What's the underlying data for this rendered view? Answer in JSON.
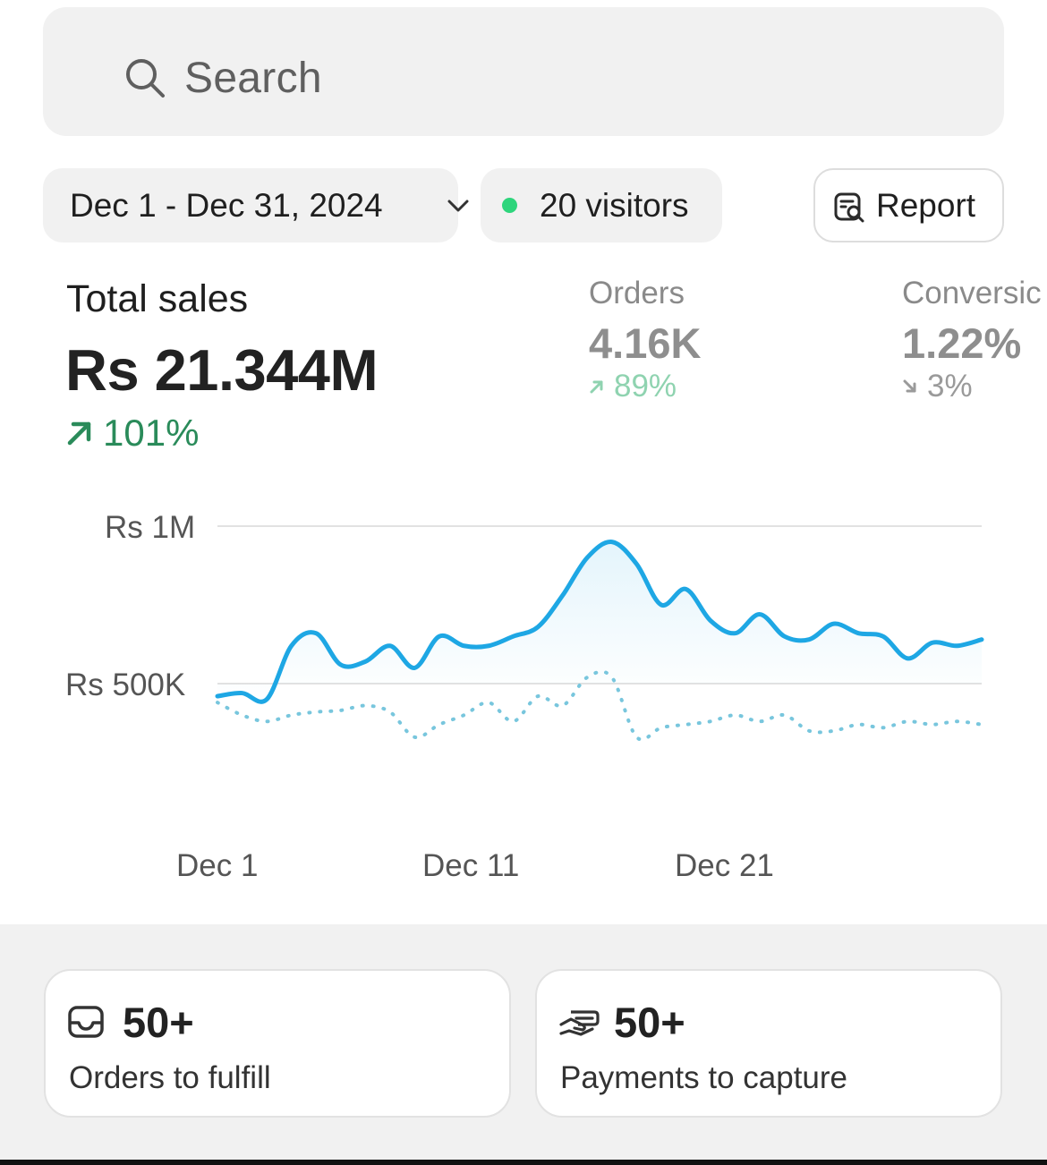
{
  "search": {
    "placeholder": "Search",
    "icon": "search-icon"
  },
  "filters": {
    "date_range": "Dec 1 - Dec 31, 2024",
    "visitors": "20 visitors",
    "visitors_dot_color": "#2ed57c",
    "report_label": "Report"
  },
  "metrics": {
    "total_sales": {
      "label": "Total sales",
      "value": "Rs 21.344M",
      "change": "101%",
      "direction": "up",
      "color": "#2a8b5a"
    },
    "orders": {
      "label": "Orders",
      "value": "4.16K",
      "change": "89%",
      "direction": "up",
      "color": "#8fd3b0"
    },
    "conversion": {
      "label": "Conversic",
      "value": "1.22%",
      "change": "3%",
      "direction": "down",
      "color": "#9a9a9a"
    }
  },
  "chart_data": {
    "type": "line",
    "x_labels": [
      "Dec 1",
      "Dec 11",
      "Dec 21"
    ],
    "y_ticks": [
      "Rs 1M",
      "Rs 500K"
    ],
    "y_tick_values": [
      1000000,
      500000
    ],
    "ylim": [
      0,
      1100000
    ],
    "grid": true,
    "series": [
      {
        "style": "solid",
        "color": "#1ea7e4",
        "values": [
          460000,
          470000,
          450000,
          620000,
          660000,
          560000,
          570000,
          620000,
          550000,
          650000,
          620000,
          620000,
          650000,
          680000,
          780000,
          900000,
          950000,
          880000,
          750000,
          800000,
          700000,
          660000,
          720000,
          650000,
          640000,
          690000,
          660000,
          650000,
          580000,
          630000,
          620000,
          640000
        ]
      },
      {
        "style": "dotted",
        "color": "#78c6dd",
        "values": [
          440000,
          400000,
          380000,
          400000,
          410000,
          415000,
          430000,
          410000,
          330000,
          370000,
          400000,
          440000,
          380000,
          460000,
          430000,
          520000,
          520000,
          330000,
          360000,
          370000,
          380000,
          400000,
          380000,
          400000,
          350000,
          350000,
          370000,
          360000,
          380000,
          370000,
          380000,
          370000
        ]
      }
    ]
  },
  "cards": [
    {
      "value": "50+",
      "label": "Orders to fulfill",
      "icon": "inbox-icon"
    },
    {
      "value": "50+",
      "label": "Payments to capture",
      "icon": "hand-cash-icon"
    }
  ]
}
